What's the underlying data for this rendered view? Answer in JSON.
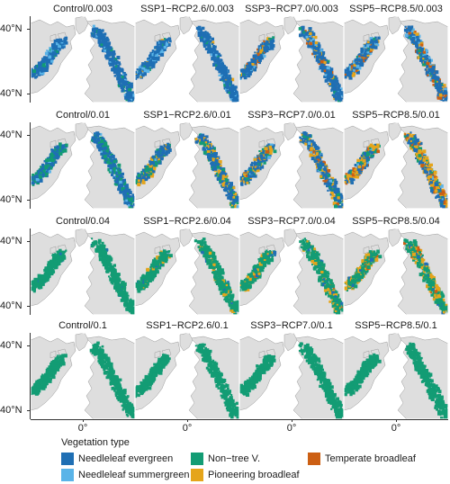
{
  "panels": [
    {
      "title": "Control/0.003",
      "mix": {
        "ne": 0.85,
        "ns": 0.08,
        "nt": 0.07,
        "pb": 0,
        "tb": 0
      }
    },
    {
      "title": "SSP1−RCP2.6/0.003",
      "mix": {
        "ne": 0.8,
        "ns": 0.12,
        "nt": 0.05,
        "pb": 0.03,
        "tb": 0
      }
    },
    {
      "title": "SSP3−RCP7.0/0.003",
      "mix": {
        "ne": 0.72,
        "ns": 0.1,
        "nt": 0.04,
        "pb": 0.08,
        "tb": 0.06
      }
    },
    {
      "title": "SSP5−RCP8.5/0.003",
      "mix": {
        "ne": 0.66,
        "ns": 0.1,
        "nt": 0.04,
        "pb": 0.1,
        "tb": 0.1
      }
    },
    {
      "title": "Control/0.01",
      "mix": {
        "ne": 0.55,
        "ns": 0.05,
        "nt": 0.4,
        "pb": 0,
        "tb": 0
      }
    },
    {
      "title": "SSP1−RCP2.6/0.01",
      "mix": {
        "ne": 0.55,
        "ns": 0.04,
        "nt": 0.21,
        "pb": 0.2,
        "tb": 0
      }
    },
    {
      "title": "SSP3−RCP7.0/0.01",
      "mix": {
        "ne": 0.5,
        "ns": 0.04,
        "nt": 0.14,
        "pb": 0.26,
        "tb": 0.06
      }
    },
    {
      "title": "SSP5−RCP8.5/0.01",
      "mix": {
        "ne": 0.42,
        "ns": 0.03,
        "nt": 0.15,
        "pb": 0.32,
        "tb": 0.08
      }
    },
    {
      "title": "Control/0.04",
      "mix": {
        "ne": 0.04,
        "ns": 0,
        "nt": 0.96,
        "pb": 0,
        "tb": 0
      }
    },
    {
      "title": "SSP1−RCP2.6/0.04",
      "mix": {
        "ne": 0.04,
        "ns": 0,
        "nt": 0.9,
        "pb": 0.06,
        "tb": 0
      }
    },
    {
      "title": "SSP3−RCP7.0/0.04",
      "mix": {
        "ne": 0.05,
        "ns": 0,
        "nt": 0.8,
        "pb": 0.14,
        "tb": 0.01
      }
    },
    {
      "title": "SSP5−RCP8.5/0.04",
      "mix": {
        "ne": 0.05,
        "ns": 0,
        "nt": 0.64,
        "pb": 0.27,
        "tb": 0.04
      }
    },
    {
      "title": "Control/0.1",
      "mix": {
        "ne": 0,
        "ns": 0,
        "nt": 1,
        "pb": 0,
        "tb": 0
      }
    },
    {
      "title": "SSP1−RCP2.6/0.1",
      "mix": {
        "ne": 0,
        "ns": 0,
        "nt": 1,
        "pb": 0,
        "tb": 0
      }
    },
    {
      "title": "SSP3−RCP7.0/0.1",
      "mix": {
        "ne": 0,
        "ns": 0,
        "nt": 1,
        "pb": 0,
        "tb": 0
      }
    },
    {
      "title": "SSP5−RCP8.5/0.1",
      "mix": {
        "ne": 0,
        "ns": 0,
        "nt": 1,
        "pb": 0,
        "tb": 0
      }
    }
  ],
  "axes": {
    "lat_top": "40°N",
    "lat_bottom": "40°N",
    "lon_label": "0°"
  },
  "legend": {
    "title": "Vegetation type",
    "items": [
      {
        "key": "ne",
        "label": "Needleleaf evergreen",
        "color": "#1f6fb4"
      },
      {
        "key": "ns",
        "label": "Needleleaf summergreen",
        "color": "#5ab4e8"
      },
      {
        "key": "nt",
        "label": "Non−tree V.",
        "color": "#139c74"
      },
      {
        "key": "pb",
        "label": "Pioneering broadleaf",
        "color": "#e5a51b"
      },
      {
        "key": "tb",
        "label": "Temperate broadleaf",
        "color": "#cc5f13"
      }
    ]
  },
  "colors": {
    "land": "#dedede",
    "coast": "#9a9a9a"
  }
}
